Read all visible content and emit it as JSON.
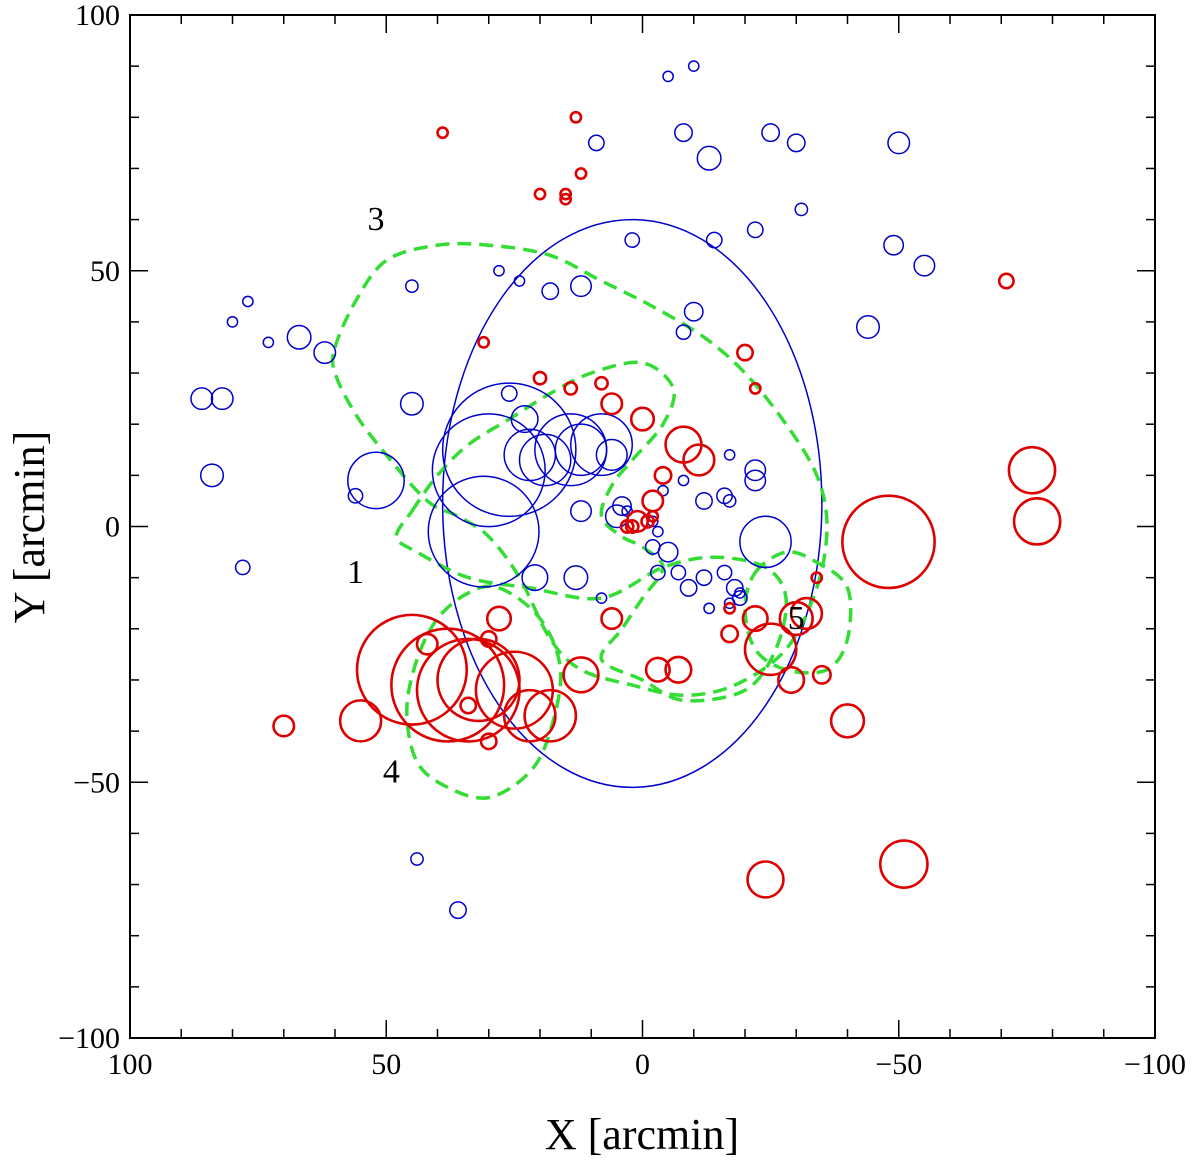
{
  "chart_data": {
    "type": "scatter",
    "title": "",
    "xlabel": "X [arcmin]",
    "ylabel": "Y [arcmin]",
    "xlim": [
      100,
      -100
    ],
    "ylim": [
      -100,
      100
    ],
    "x_ticks": [
      100,
      50,
      0,
      -50,
      -100
    ],
    "y_ticks": [
      100,
      50,
      0,
      -50,
      -100
    ],
    "x_tick_labels": [
      "100",
      "50",
      "0",
      "−50",
      "−100"
    ],
    "y_tick_labels": [
      "100",
      "50",
      "0",
      "−50",
      "−100"
    ],
    "minor_tick_step": 10,
    "colors": {
      "blue": "#0000cc",
      "red": "#dd0000",
      "green": "#33dd33",
      "axis": "#000000"
    },
    "boundary": {
      "name": "cluster-boundary",
      "center": [
        2,
        4.5
      ],
      "rx": 37,
      "ry": 55.5,
      "color": "blue"
    },
    "green_contours": [
      {
        "name": "region-3",
        "points": [
          [
            60,
            35
          ],
          [
            56,
            44
          ],
          [
            50,
            52
          ],
          [
            40,
            55
          ],
          [
            30,
            55
          ],
          [
            18,
            53
          ],
          [
            8,
            48
          ],
          [
            -2,
            43
          ],
          [
            -12,
            37
          ],
          [
            -20,
            30
          ],
          [
            -28,
            20
          ],
          [
            -34,
            10
          ],
          [
            -36,
            0
          ],
          [
            -34,
            -12
          ],
          [
            -28,
            -24
          ],
          [
            -18,
            -31
          ],
          [
            -8,
            -33
          ],
          [
            2,
            -31
          ],
          [
            12,
            -28
          ],
          [
            18,
            -22
          ],
          [
            24,
            -10
          ],
          [
            30,
            -2
          ],
          [
            36,
            2
          ],
          [
            42,
            5
          ],
          [
            50,
            14
          ],
          [
            56,
            22
          ],
          [
            60,
            30
          ]
        ]
      },
      {
        "name": "region-1",
        "points": [
          [
            45,
            3
          ],
          [
            40,
            10
          ],
          [
            34,
            16
          ],
          [
            26,
            21
          ],
          [
            18,
            26
          ],
          [
            10,
            30
          ],
          [
            0,
            32
          ],
          [
            -6,
            27
          ],
          [
            -4,
            20
          ],
          [
            2,
            13
          ],
          [
            6,
            8
          ],
          [
            8,
            2
          ],
          [
            4,
            -2
          ],
          [
            0,
            -4
          ],
          [
            -4,
            -8
          ],
          [
            0,
            -14
          ],
          [
            4,
            -20
          ],
          [
            8,
            -26
          ],
          [
            0,
            -30
          ],
          [
            -8,
            -34
          ],
          [
            -20,
            -32
          ],
          [
            -26,
            -24
          ],
          [
            -28,
            -14
          ],
          [
            -24,
            -8
          ],
          [
            -14,
            -6
          ],
          [
            -4,
            -8
          ],
          [
            8,
            -14
          ],
          [
            22,
            -12
          ],
          [
            34,
            -10
          ],
          [
            44,
            -5
          ],
          [
            48,
            -2
          ]
        ]
      },
      {
        "name": "region-4",
        "points": [
          [
            28,
            -12
          ],
          [
            20,
            -18
          ],
          [
            16,
            -28
          ],
          [
            18,
            -40
          ],
          [
            22,
            -48
          ],
          [
            30,
            -53
          ],
          [
            38,
            -51
          ],
          [
            44,
            -46
          ],
          [
            46,
            -36
          ],
          [
            44,
            -26
          ],
          [
            40,
            -18
          ],
          [
            34,
            -13
          ]
        ]
      },
      {
        "name": "region-5",
        "points": [
          [
            -22,
            -9
          ],
          [
            -28,
            -5
          ],
          [
            -34,
            -7
          ],
          [
            -40,
            -12
          ],
          [
            -40,
            -22
          ],
          [
            -36,
            -28
          ],
          [
            -28,
            -28
          ],
          [
            -22,
            -24
          ],
          [
            -20,
            -16
          ]
        ]
      }
    ],
    "region_labels": [
      {
        "text": "3",
        "x": 52,
        "y": 58
      },
      {
        "text": "1",
        "x": 56,
        "y": -11
      },
      {
        "text": "4",
        "x": 49,
        "y": -50
      },
      {
        "text": "5",
        "x": -30,
        "y": -20
      }
    ],
    "series": [
      {
        "name": "blue-sources",
        "color": "blue",
        "points": [
          [
            -5,
            88,
            1
          ],
          [
            -10,
            90,
            1
          ],
          [
            -8,
            77,
            1.7
          ],
          [
            -25,
            77,
            1.7
          ],
          [
            9,
            75,
            1.5
          ],
          [
            -13,
            72,
            2.3
          ],
          [
            -30,
            75,
            1.7
          ],
          [
            -50,
            75,
            2.1
          ],
          [
            2,
            56,
            1.4
          ],
          [
            -14,
            56,
            1.5
          ],
          [
            -22,
            58,
            1.5
          ],
          [
            -31,
            62,
            1.2
          ],
          [
            -49,
            55,
            1.9
          ],
          [
            -55,
            51,
            2
          ],
          [
            45,
            47,
            1.2
          ],
          [
            28,
            50,
            1
          ],
          [
            24,
            48,
            1
          ],
          [
            18,
            46,
            1.6
          ],
          [
            12,
            47,
            2
          ],
          [
            -10,
            42,
            1.8
          ],
          [
            -8,
            38,
            1.4
          ],
          [
            -44,
            39,
            2.2
          ],
          [
            80,
            40,
            1
          ],
          [
            77,
            44,
            1
          ],
          [
            73,
            36,
            1
          ],
          [
            67,
            37,
            2.3
          ],
          [
            62,
            34,
            2.1
          ],
          [
            86,
            25,
            2.1
          ],
          [
            82,
            25,
            2.1
          ],
          [
            45,
            24,
            2.2
          ],
          [
            84,
            10,
            2.2
          ],
          [
            78,
            -8,
            1.4
          ],
          [
            56,
            6,
            1.4
          ],
          [
            26,
            26,
            1.5
          ],
          [
            23,
            21,
            2.6
          ],
          [
            26,
            15,
            13
          ],
          [
            22,
            14,
            5
          ],
          [
            19,
            13,
            5
          ],
          [
            14,
            15,
            7
          ],
          [
            12,
            15,
            5
          ],
          [
            8,
            16,
            6
          ],
          [
            6,
            14,
            3
          ],
          [
            52,
            9,
            5.5
          ],
          [
            31,
            -1,
            10.8
          ],
          [
            30,
            11,
            11
          ],
          [
            12,
            3,
            2
          ],
          [
            -4,
            7,
            1
          ],
          [
            -8,
            9,
            1
          ],
          [
            4,
            4,
            1.8
          ],
          [
            5,
            2,
            2.2
          ],
          [
            3,
            3,
            1
          ],
          [
            -2,
            1,
            1
          ],
          [
            -3,
            -1,
            1
          ],
          [
            -12,
            5,
            1.6
          ],
          [
            -16,
            6,
            1.5
          ],
          [
            -17,
            5,
            1.2
          ],
          [
            -22,
            9,
            2
          ],
          [
            -22,
            11,
            2
          ],
          [
            -24,
            -3,
            5
          ],
          [
            -2,
            -4,
            1.4
          ],
          [
            -5,
            -5,
            1.9
          ],
          [
            -3,
            -9,
            1.4
          ],
          [
            -7,
            -9,
            1.4
          ],
          [
            -9,
            -12,
            1.6
          ],
          [
            -12,
            -10,
            1.5
          ],
          [
            -16,
            -9,
            1.4
          ],
          [
            -18,
            -12,
            1.6
          ],
          [
            -19,
            -14,
            1.4
          ],
          [
            -13,
            -16,
            1
          ],
          [
            -17,
            -15,
            1
          ],
          [
            -19,
            -13,
            1
          ],
          [
            21,
            -10,
            2.5
          ],
          [
            13,
            -10,
            2.3
          ],
          [
            8,
            -14,
            1
          ],
          [
            44,
            -65,
            1.2
          ],
          [
            36,
            -75,
            1.6
          ],
          [
            -17,
            14,
            1
          ]
        ]
      },
      {
        "name": "red-sources",
        "color": "red",
        "points": [
          [
            39,
            77,
            1
          ],
          [
            13,
            80,
            1
          ],
          [
            12,
            69,
            1
          ],
          [
            15,
            65,
            1
          ],
          [
            15,
            64,
            1
          ],
          [
            20,
            65,
            1
          ],
          [
            31,
            36,
            1
          ],
          [
            -71,
            48,
            1.4
          ],
          [
            -20,
            34,
            1.5
          ],
          [
            -22,
            27,
            1
          ],
          [
            20,
            29,
            1.2
          ],
          [
            14,
            27,
            1.2
          ],
          [
            8,
            28,
            1.2
          ],
          [
            -8,
            16,
            3.5
          ],
          [
            -11,
            13,
            3
          ],
          [
            6,
            24,
            2
          ],
          [
            0,
            21,
            2.2
          ],
          [
            -4,
            10,
            1.6
          ],
          [
            -2,
            5,
            2
          ],
          [
            -1,
            1,
            1.2
          ],
          [
            1,
            1,
            2
          ],
          [
            -2,
            2,
            1
          ],
          [
            2,
            0,
            1.2
          ],
          [
            3,
            0,
            1.2
          ],
          [
            -48,
            -3,
            9
          ],
          [
            -76,
            11,
            4.5
          ],
          [
            -77,
            1,
            4.5
          ],
          [
            45,
            -28,
            10.7
          ],
          [
            38,
            -31,
            11
          ],
          [
            34,
            -32,
            10
          ],
          [
            32,
            -30,
            8
          ],
          [
            25,
            -32,
            7.5
          ],
          [
            22,
            -37,
            5
          ],
          [
            18,
            -37,
            5
          ],
          [
            42,
            -23,
            2
          ],
          [
            30,
            -22,
            1.5
          ],
          [
            28,
            -18,
            2.3
          ],
          [
            30,
            -42,
            1.5
          ],
          [
            34,
            -35,
            1.5
          ],
          [
            55,
            -38,
            4
          ],
          [
            70,
            -39,
            2
          ],
          [
            6,
            -18,
            2
          ],
          [
            -3,
            -28,
            2.3
          ],
          [
            -7,
            -28,
            2.5
          ],
          [
            12,
            -29,
            3.4
          ],
          [
            -17,
            -16,
            1
          ],
          [
            -17,
            -21,
            1.6
          ],
          [
            -22,
            -18,
            2.4
          ],
          [
            -25,
            -24,
            5
          ],
          [
            -29,
            -30,
            2.5
          ],
          [
            -32,
            -17,
            3
          ],
          [
            -30,
            -18,
            3.2
          ],
          [
            -34,
            -10,
            1
          ],
          [
            -35,
            -29,
            1.7
          ],
          [
            -40,
            -38,
            3.2
          ],
          [
            -24,
            -69,
            3.5
          ],
          [
            -51,
            -66,
            4.6
          ]
        ]
      }
    ]
  }
}
